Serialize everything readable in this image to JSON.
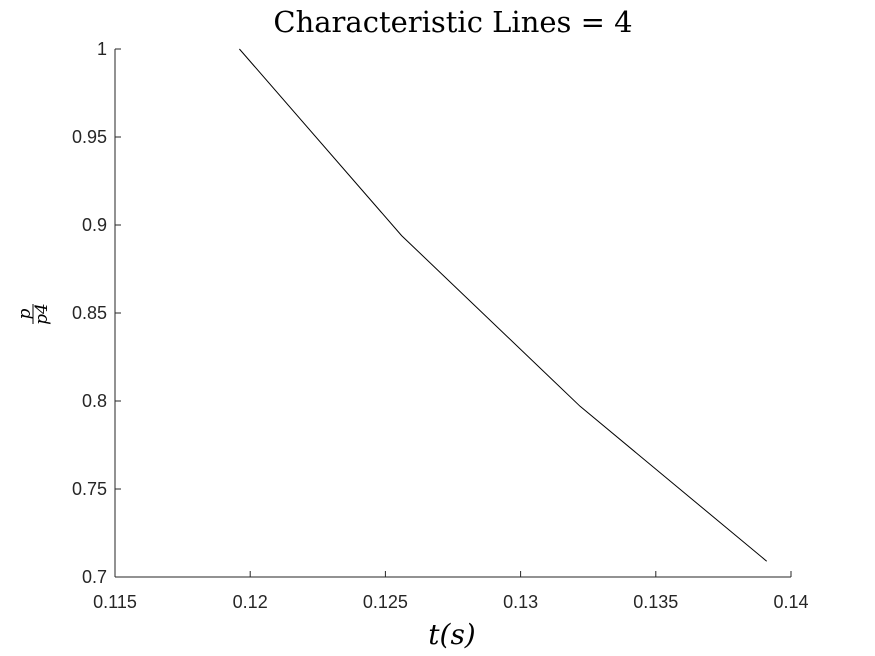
{
  "chart_data": {
    "type": "line",
    "title": "Characteristic Lines = 4",
    "xlabel": "t(s)",
    "ylabel": {
      "numerator": "p",
      "denominator": "p4"
    },
    "xlim": [
      0.115,
      0.14
    ],
    "ylim": [
      0.7,
      1.0
    ],
    "xticks": [
      0.115,
      0.12,
      0.125,
      0.13,
      0.135,
      0.14
    ],
    "xtick_labels": [
      "0.115",
      "0.12",
      "0.125",
      "0.13",
      "0.135",
      "0.14"
    ],
    "yticks": [
      0.7,
      0.75,
      0.8,
      0.85,
      0.9,
      0.95,
      1.0
    ],
    "ytick_labels": [
      "0.7",
      "0.75",
      "0.8",
      "0.85",
      "0.9",
      "0.95",
      "1"
    ],
    "grid": false,
    "series": [
      {
        "color": "#000000",
        "x": [
          0.1196,
          0.1256,
          0.1322,
          0.1391
        ],
        "y": [
          1.0,
          0.894,
          0.797,
          0.709
        ]
      }
    ]
  }
}
